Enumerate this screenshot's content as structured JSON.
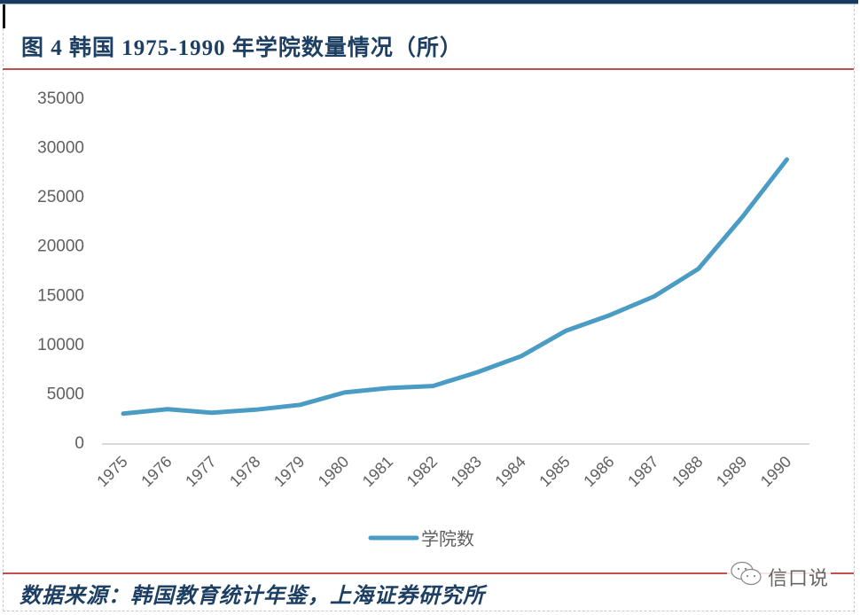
{
  "header": {
    "title": "图 4  韩国  1975-1990 年学院数量情况（所）"
  },
  "footer": {
    "source": "数据来源：韩国教育统计年鉴，上海证券研究所",
    "watermark": "信口说",
    "watermark_icon": "wechat-icon"
  },
  "colors": {
    "series": "#4a9cc4",
    "title": "#1d3f63",
    "rule": "#c0504d",
    "axis_text": "#5f5f5f",
    "axis_line": "#d9d9d9"
  },
  "chart_data": {
    "type": "line",
    "title": "图 4  韩国  1975-1990 年学院数量情况（所）",
    "xlabel": "",
    "ylabel": "",
    "x": [
      "1975",
      "1976",
      "1977",
      "1978",
      "1979",
      "1980",
      "1981",
      "1982",
      "1983",
      "1984",
      "1985",
      "1986",
      "1987",
      "1988",
      "1989",
      "1990"
    ],
    "series": [
      {
        "name": "学院数",
        "values": [
          2900,
          3350,
          3000,
          3300,
          3800,
          5050,
          5500,
          5700,
          7100,
          8750,
          11300,
          12900,
          14800,
          17600,
          22900,
          28700
        ]
      }
    ],
    "ylim": [
      0,
      35000
    ],
    "yticks": [
      "0",
      "5000",
      "10000",
      "15000",
      "20000",
      "25000",
      "30000",
      "35000"
    ],
    "grid": false,
    "legend_position": "bottom"
  }
}
